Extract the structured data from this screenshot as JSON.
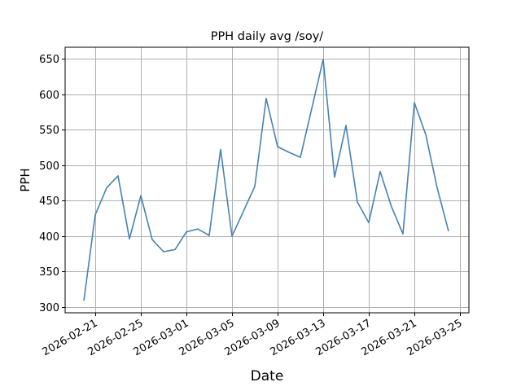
{
  "chart_data": {
    "type": "line",
    "title": "PPH daily avg /soy/",
    "xlabel": "Date",
    "ylabel": "PPH",
    "ylim": [
      290,
      665
    ],
    "xlim": [
      "2026-02-19",
      "2026-03-25"
    ],
    "grid": true,
    "legend": null,
    "line_color": "#4682b4",
    "yticks": [
      300,
      350,
      400,
      450,
      500,
      550,
      600,
      650
    ],
    "xticks": [
      "2026-02-21",
      "2026-02-25",
      "2026-03-01",
      "2026-03-05",
      "2026-03-09",
      "2026-03-13",
      "2026-03-17",
      "2026-03-21",
      "2026-03-25"
    ],
    "x": [
      "2026-02-20",
      "2026-02-21",
      "2026-02-22",
      "2026-02-23",
      "2026-02-24",
      "2026-02-25",
      "2026-02-26",
      "2026-02-27",
      "2026-02-28",
      "2026-03-01",
      "2026-03-02",
      "2026-03-03",
      "2026-03-04",
      "2026-03-05",
      "2026-03-06",
      "2026-03-07",
      "2026-03-08",
      "2026-03-09",
      "2026-03-10",
      "2026-03-11",
      "2026-03-12",
      "2026-03-13",
      "2026-03-14",
      "2026-03-15",
      "2026-03-16",
      "2026-03-17",
      "2026-03-18",
      "2026-03-19",
      "2026-03-20",
      "2026-03-21",
      "2026-03-22",
      "2026-03-23",
      "2026-03-24"
    ],
    "series": [
      {
        "name": "PPH",
        "values": [
          309,
          430,
          468,
          485,
          396,
          457,
          395,
          378,
          381,
          406,
          410,
          401,
          522,
          400,
          435,
          470,
          594,
          526,
          518,
          511,
          580,
          649,
          483,
          556,
          448,
          419,
          491,
          441,
          403,
          588,
          543,
          468,
          407
        ]
      }
    ]
  }
}
